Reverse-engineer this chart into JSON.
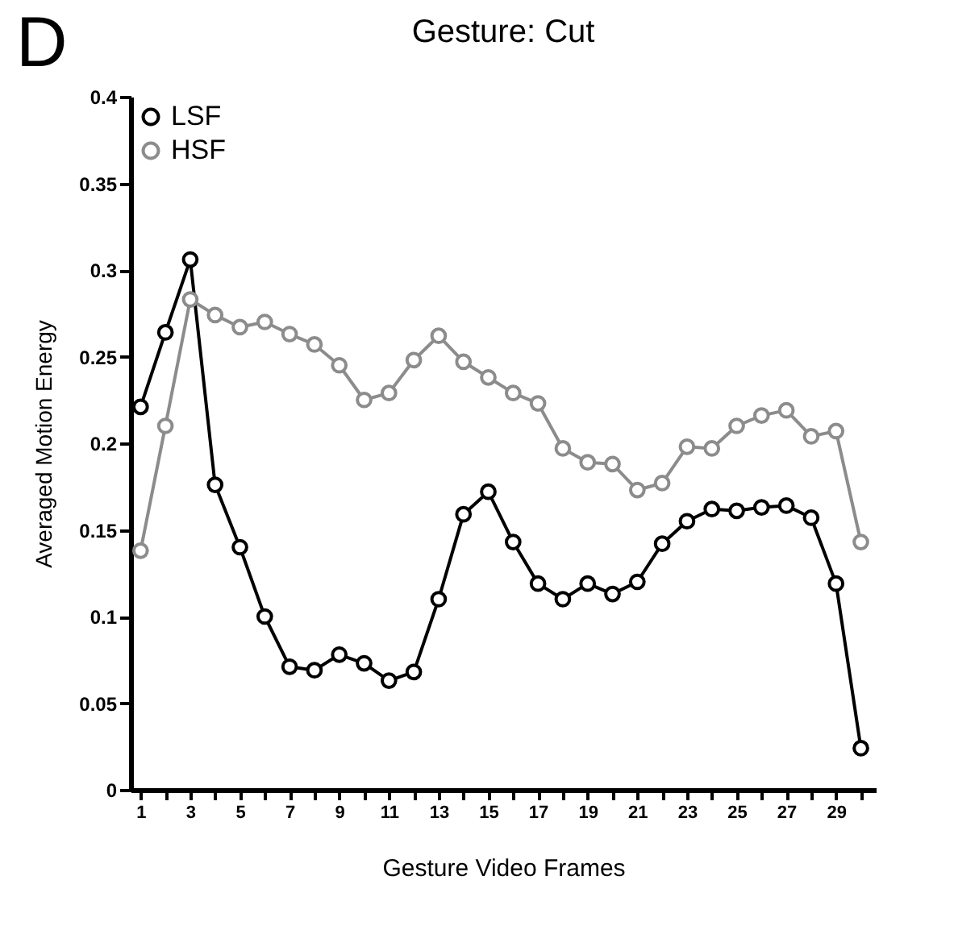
{
  "chart_data": {
    "type": "line",
    "title": "Gesture: Cut",
    "annotations": [
      "D"
    ],
    "xlabel": "Gesture Video Frames",
    "ylabel": "Averaged Motion Energy",
    "x": [
      1,
      2,
      3,
      4,
      5,
      6,
      7,
      8,
      9,
      10,
      11,
      12,
      13,
      14,
      15,
      16,
      17,
      18,
      19,
      20,
      21,
      22,
      23,
      24,
      25,
      26,
      27,
      28,
      29,
      30
    ],
    "series": [
      {
        "name": "LSF",
        "color": "#000000",
        "values": [
          0.221,
          0.264,
          0.306,
          0.176,
          0.14,
          0.1,
          0.071,
          0.069,
          0.078,
          0.073,
          0.063,
          0.068,
          0.11,
          0.159,
          0.172,
          0.143,
          0.119,
          0.11,
          0.119,
          0.113,
          0.12,
          0.142,
          0.155,
          0.162,
          0.161,
          0.163,
          0.164,
          0.157,
          0.119,
          0.024
        ]
      },
      {
        "name": "HSF",
        "color": "#8c8c8c",
        "values": [
          0.138,
          0.21,
          0.283,
          0.274,
          0.267,
          0.27,
          0.263,
          0.257,
          0.245,
          0.225,
          0.229,
          0.248,
          0.262,
          0.247,
          0.238,
          0.229,
          0.223,
          0.197,
          0.189,
          0.188,
          0.173,
          0.177,
          0.198,
          0.197,
          0.21,
          0.216,
          0.219,
          0.204,
          0.207,
          0.143
        ]
      }
    ],
    "xlim": [
      0.6,
      30.6
    ],
    "xticks": [
      1,
      {
        "value": 2,
        "label": null
      },
      3,
      {
        "value": 4,
        "label": null
      },
      5,
      {
        "value": 6,
        "label": null
      },
      7,
      {
        "value": 8,
        "label": null
      },
      9,
      {
        "value": 10,
        "label": null
      },
      11,
      {
        "value": 12,
        "label": null
      },
      13,
      {
        "value": 14,
        "label": null
      },
      15,
      {
        "value": 16,
        "label": null
      },
      17,
      {
        "value": 18,
        "label": null
      },
      19,
      {
        "value": 20,
        "label": null
      },
      21,
      {
        "value": 22,
        "label": null
      },
      23,
      {
        "value": 24,
        "label": null
      },
      25,
      {
        "value": 26,
        "label": null
      },
      27,
      {
        "value": 28,
        "label": null
      },
      29,
      {
        "value": 30,
        "label": null
      }
    ],
    "ylim": [
      0,
      0.4
    ],
    "yticks": [
      0,
      0.05,
      0.1,
      0.15,
      0.2,
      0.25,
      0.3,
      0.35,
      0.4
    ],
    "grid": false,
    "legend": "top left",
    "marker": "circle",
    "line_style": "solid"
  }
}
